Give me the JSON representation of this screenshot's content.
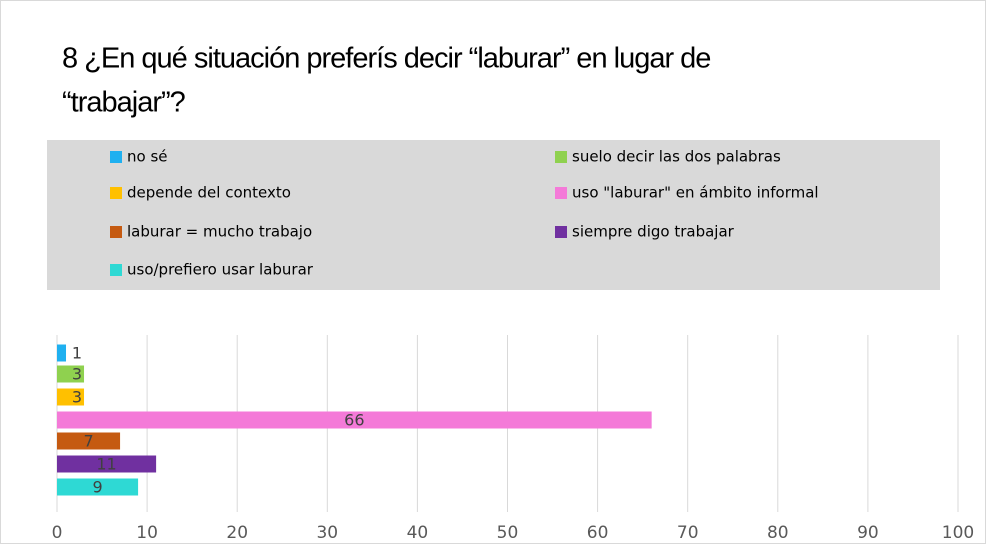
{
  "chart_data": {
    "type": "bar",
    "orientation": "horizontal",
    "title_lines": [
      "8 ¿En qué situación preferís decir “laburar” en lugar de",
      "“trabajar”?"
    ],
    "series": [
      {
        "name": "no sé",
        "color": "#1fb0f0",
        "values": [
          1
        ]
      },
      {
        "name": "suelo decir las dos palabras",
        "color": "#8fd14f",
        "values": [
          3
        ]
      },
      {
        "name": "depende del contexto",
        "color": "#ffc000",
        "values": [
          3
        ]
      },
      {
        "name": "uso \"laburar\" en ámbito informal",
        "color": "#f47ad8",
        "values": [
          66
        ]
      },
      {
        "name": "laburar = mucho trabajo",
        "color": "#c55a11",
        "values": [
          7
        ]
      },
      {
        "name": "siempre digo trabajar",
        "color": "#7030a0",
        "values": [
          11
        ]
      },
      {
        "name": "uso/prefiero usar laburar",
        "color": "#2ed9d4",
        "values": [
          9
        ]
      }
    ],
    "xlim": [
      0,
      100
    ],
    "xticks": [
      0,
      10,
      20,
      30,
      40,
      50,
      60,
      70,
      80,
      90,
      100
    ],
    "grid": true,
    "legend": "top"
  }
}
